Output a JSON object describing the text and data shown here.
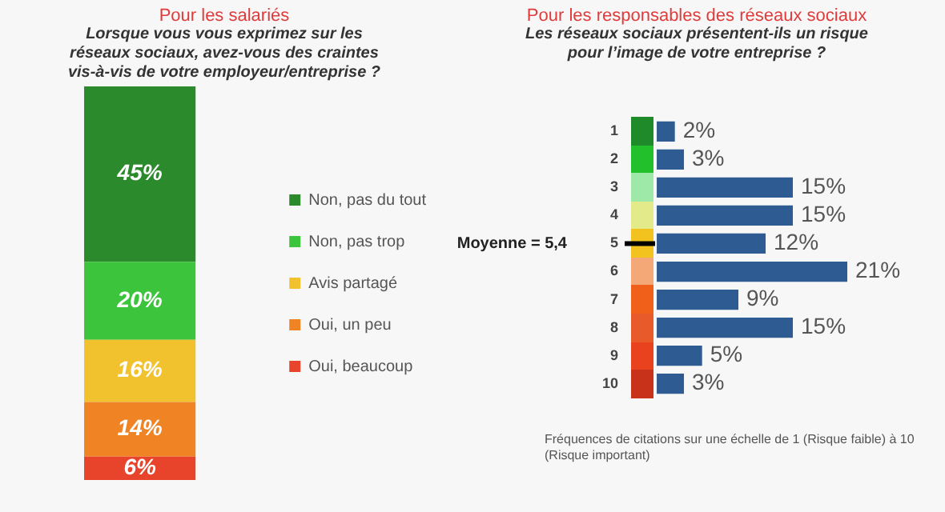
{
  "chart_data": [
    {
      "type": "bar",
      "stacked": true,
      "title": "Pour les salariés",
      "subtitle": "Lorsque vous vous exprimez sur les réseaux sociaux, avez-vous des craintes vis-à-vis de votre employeur/entreprise ?",
      "categories": [
        null
      ],
      "legend": "right",
      "tick_labels": false,
      "series": [
        {
          "name": "Oui, beaucoup",
          "color": "#e8432b",
          "values": [
            6
          ],
          "value_labels": [
            "6%"
          ]
        },
        {
          "name": "Oui, un peu",
          "color": "#f08324",
          "values": [
            14
          ],
          "value_labels": [
            "14%"
          ]
        },
        {
          "name": "Avis partagé",
          "color": "#f2c22e",
          "values": [
            16
          ],
          "value_labels": [
            "16%"
          ]
        },
        {
          "name": "Non, pas trop",
          "color": "#3cc43c",
          "values": [
            20
          ],
          "value_labels": [
            "20%"
          ]
        },
        {
          "name": "Non, pas du tout",
          "color": "#2b8a2b",
          "values": [
            45
          ],
          "value_labels": [
            "45%"
          ]
        }
      ]
    },
    {
      "type": "bar",
      "orientation": "horizontal",
      "title": "Pour les responsables des réseaux sociaux",
      "subtitle": "Les réseaux sociaux présentent-ils un risque pour l’image de votre entreprise ?",
      "categories": [
        "1",
        "2",
        "3",
        "4",
        "5",
        "6",
        "7",
        "8",
        "9",
        "10"
      ],
      "values": [
        2,
        3,
        15,
        15,
        12,
        21,
        9,
        15,
        5,
        3
      ],
      "value_labels": [
        "2%",
        "3%",
        "15%",
        "15%",
        "12%",
        "21%",
        "9%",
        "15%",
        "5%",
        "3%"
      ],
      "color": "#2f5b93",
      "tick_labels": "y",
      "annotations": [
        "Moyenne = 5,4",
        "Fréquences de citations sur une échelle de 1 (Risque faible) à 10 (Risque important)"
      ]
    }
  ]
}
